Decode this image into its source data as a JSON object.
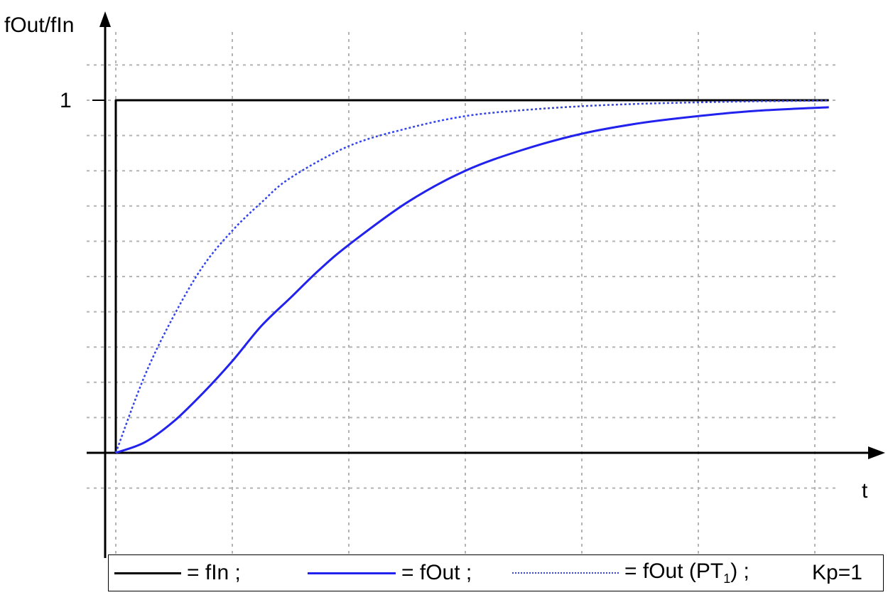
{
  "chart_data": {
    "type": "line",
    "title": "",
    "xlabel": "t",
    "ylabel": "fOut/fIn",
    "y_ticks": [
      {
        "value": 1,
        "label": "1"
      }
    ],
    "xlim": [
      -0.1,
      6.35
    ],
    "ylim": [
      -0.36,
      1.25
    ],
    "grid": true,
    "legend_placement": "bottom",
    "series": [
      {
        "name": "= fIn ;",
        "style": "solid",
        "color": "#000000",
        "x": [
          0,
          0,
          6.12
        ],
        "y": [
          0,
          1,
          1
        ]
      },
      {
        "name": "= fOut ;",
        "style": "solid",
        "color": "#2222ee",
        "x": [
          0,
          0.25,
          0.5,
          0.75,
          1.0,
          1.25,
          1.5,
          1.75,
          2.0,
          2.5,
          3.0,
          3.5,
          4.0,
          4.5,
          5.0,
          5.5,
          6.12
        ],
        "y": [
          0,
          0.03,
          0.09,
          0.17,
          0.26,
          0.36,
          0.44,
          0.52,
          0.59,
          0.71,
          0.8,
          0.86,
          0.905,
          0.935,
          0.955,
          0.97,
          0.98
        ]
      },
      {
        "name": "= fOut (PT₁) ;",
        "style": "dotted",
        "color": "#3344ee",
        "x": [
          0,
          0.25,
          0.5,
          0.75,
          1.0,
          1.25,
          1.5,
          2.0,
          2.5,
          3.0,
          3.5,
          4.0,
          4.5,
          5.0,
          5.5,
          6.12
        ],
        "y": [
          0,
          0.22,
          0.39,
          0.53,
          0.63,
          0.71,
          0.78,
          0.87,
          0.92,
          0.955,
          0.972,
          0.983,
          0.99,
          0.994,
          0.997,
          0.999
        ]
      }
    ],
    "legend": {
      "fin_label": "= fIn ;",
      "fout_label": "= fOut ;",
      "pt1_label_main": "= fOut (PT",
      "pt1_label_sub": "1",
      "pt1_label_end": ") ;",
      "kp_label": "Kp=1"
    }
  }
}
